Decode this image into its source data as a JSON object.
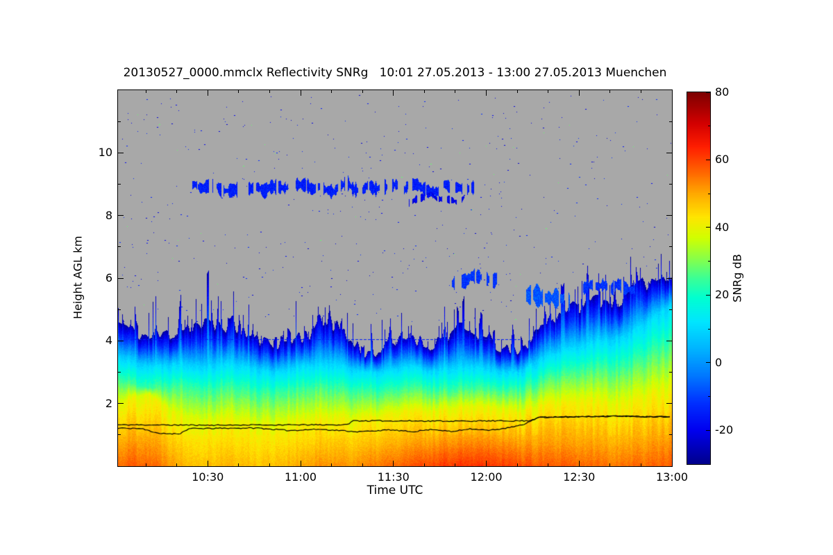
{
  "title": "20130527_0000.mmclx Reflectivity SNRg   10:01 27.05.2013 - 13:00 27.05.2013 Muenchen",
  "chart_data": {
    "type": "heatmap",
    "title": "20130527_0000.mmclx Reflectivity SNRg",
    "site": "Muenchen",
    "time_start": "10:01 27.05.2013",
    "time_end": "13:00 27.05.2013",
    "x": {
      "label": "Time UTC",
      "ticks": [
        "10:30",
        "11:00",
        "11:30",
        "12:00",
        "12:30",
        "13:00"
      ],
      "tick_minutes": [
        29,
        59,
        89,
        119,
        149,
        179
      ],
      "range_minutes_since_start": [
        0,
        179
      ],
      "minor_step_min": 10
    },
    "y": {
      "label": "Height AGL km",
      "ticks": [
        2,
        4,
        6,
        8,
        10
      ],
      "range_km": [
        0,
        12
      ],
      "minor_step_km": 1
    },
    "value": {
      "label": "SNRg dB",
      "ticks": [
        80,
        60,
        40,
        20,
        0,
        -20
      ],
      "minor_ticks": [
        70,
        50,
        30,
        10,
        -10
      ],
      "range_db": [
        -30,
        80
      ]
    },
    "no_signal_color": "#a8a8a8",
    "colormap_stops": [
      [
        -30,
        "#00008c"
      ],
      [
        -20,
        "#0000f0"
      ],
      [
        -12,
        "#0030ff"
      ],
      [
        -4,
        "#0078ff"
      ],
      [
        4,
        "#00b4ff"
      ],
      [
        12,
        "#00e6ff"
      ],
      [
        19,
        "#00ffd2"
      ],
      [
        25,
        "#3cff96"
      ],
      [
        31,
        "#8cff46"
      ],
      [
        37,
        "#d2ff00"
      ],
      [
        43,
        "#ffe600"
      ],
      [
        50,
        "#ffaa00"
      ],
      [
        57,
        "#ff6000"
      ],
      [
        64,
        "#ff1e00"
      ],
      [
        71,
        "#d20000"
      ],
      [
        80,
        "#7d0000"
      ]
    ],
    "time_grid_min": {
      "start": 0,
      "step": 5,
      "count": 37
    },
    "profiles": {
      "echo_top_km": [
        4.6,
        4.3,
        4.1,
        4.2,
        4.4,
        4.5,
        4.4,
        4.6,
        4.3,
        4.0,
        3.9,
        4.0,
        4.2,
        4.5,
        4.6,
        4.0,
        3.6,
        3.7,
        3.9,
        4.2,
        3.8,
        4.1,
        4.4,
        4.2,
        4.0,
        3.7,
        3.6,
        4.3,
        4.7,
        5.0,
        5.1,
        5.4,
        5.2,
        5.5,
        5.8,
        6.0,
        6.1
      ],
      "cyan_top_km": [
        3.5,
        3.3,
        3.2,
        3.2,
        3.3,
        3.2,
        3.2,
        3.3,
        3.2,
        3.1,
        3.0,
        3.1,
        3.2,
        3.2,
        3.3,
        3.1,
        3.0,
        3.0,
        3.1,
        3.2,
        3.0,
        3.1,
        3.2,
        3.2,
        3.1,
        3.0,
        3.0,
        3.3,
        3.5,
        3.7,
        3.8,
        4.0,
        4.0,
        4.2,
        4.5,
        4.9,
        5.2
      ],
      "green_top_km": [
        2.8,
        2.6,
        2.5,
        2.5,
        2.6,
        2.5,
        2.4,
        2.5,
        2.4,
        2.3,
        2.3,
        2.4,
        2.4,
        2.5,
        2.5,
        2.4,
        2.3,
        2.3,
        2.4,
        2.5,
        2.4,
        2.4,
        2.5,
        2.5,
        2.5,
        2.4,
        2.4,
        2.6,
        2.8,
        2.9,
        3.0,
        3.1,
        3.1,
        3.2,
        3.4,
        3.7,
        4.0
      ],
      "yellow_top_km": [
        2.0,
        2.2,
        2.3,
        1.9,
        1.6,
        1.5,
        1.4,
        1.5,
        1.4,
        1.3,
        1.3,
        1.4,
        1.4,
        1.5,
        1.6,
        1.5,
        1.5,
        1.6,
        1.7,
        1.8,
        1.7,
        1.8,
        1.9,
        1.9,
        1.9,
        1.8,
        1.7,
        1.9,
        2.0,
        2.0,
        2.1,
        2.1,
        2.0,
        2.1,
        2.2,
        2.4,
        2.6
      ],
      "surface_snr_db": [
        56,
        58,
        57,
        54,
        50,
        48,
        48,
        49,
        48,
        47,
        48,
        49,
        50,
        52,
        53,
        52,
        53,
        55,
        56,
        58,
        59,
        61,
        62,
        62,
        62,
        61,
        59,
        58,
        57,
        57,
        56,
        56,
        55,
        56,
        56,
        57,
        58
      ],
      "spike_amp_km": [
        0.5,
        0.4,
        0.5,
        0.6,
        0.7,
        0.8,
        0.8,
        0.7,
        0.7,
        0.5,
        0.4,
        0.5,
        0.6,
        0.7,
        0.6,
        0.5,
        0.4,
        0.5,
        0.5,
        0.5,
        0.4,
        0.5,
        0.5,
        0.4,
        0.5,
        0.4,
        0.4,
        0.5,
        0.5,
        0.5,
        0.5,
        0.6,
        0.5,
        0.6,
        0.5,
        0.4,
        0.3
      ]
    },
    "features": {
      "upper_cloud_layers": [
        {
          "t_start_min": 24,
          "t_end_min": 115,
          "h_center_km": 8.9,
          "thickness_km": 0.3,
          "snr_db": -15
        },
        {
          "t_start_min": 94,
          "t_end_min": 112,
          "h_center_km": 8.55,
          "thickness_km": 0.15,
          "snr_db": -20
        },
        {
          "t_start_min": 108,
          "t_end_min": 124,
          "h_center_km": 5.95,
          "thickness_km": 0.3,
          "snr_db": -12
        },
        {
          "t_start_min": 131,
          "t_end_min": 146,
          "h_center_km": 5.35,
          "thickness_km": 0.45,
          "snr_db": -8
        },
        {
          "t_start_min": 150,
          "t_end_min": 168,
          "h_center_km": 5.75,
          "thickness_km": 0.3,
          "snr_db": -12
        }
      ],
      "artifact_lines": [
        {
          "h_km": 4.05,
          "t_start_min": 4,
          "t_end_min": 130,
          "snr_db": -15,
          "dashed": true
        }
      ],
      "speckle_dots": {
        "count": 500,
        "h_range_km": [
          4.6,
          11.9
        ]
      },
      "overlay_lines": [
        {
          "name": "detected-layer-upper",
          "color": "#000000",
          "points_t_h": [
            [
              0,
              1.32
            ],
            [
              30,
              1.31
            ],
            [
              60,
              1.32
            ],
            [
              74,
              1.32
            ],
            [
              76,
              1.45
            ],
            [
              110,
              1.44
            ],
            [
              133,
              1.45
            ],
            [
              136,
              1.56
            ],
            [
              150,
              1.58
            ],
            [
              162,
              1.6
            ],
            [
              172,
              1.58
            ],
            [
              180,
              1.58
            ]
          ]
        },
        {
          "name": "detected-layer-lower",
          "color": "#000000",
          "points_t_h": [
            [
              0,
              1.22
            ],
            [
              8,
              1.2
            ],
            [
              13,
              1.04
            ],
            [
              20,
              1.04
            ],
            [
              23,
              1.2
            ],
            [
              45,
              1.22
            ],
            [
              55,
              1.14
            ],
            [
              65,
              1.18
            ],
            [
              78,
              1.1
            ],
            [
              88,
              1.16
            ],
            [
              95,
              1.1
            ],
            [
              102,
              1.18
            ],
            [
              108,
              1.1
            ],
            [
              114,
              1.2
            ],
            [
              120,
              1.14
            ],
            [
              126,
              1.22
            ],
            [
              131,
              1.32
            ],
            [
              136,
              1.56
            ],
            [
              150,
              1.58
            ],
            [
              162,
              1.6
            ],
            [
              172,
              1.58
            ],
            [
              180,
              1.58
            ]
          ]
        }
      ]
    }
  }
}
